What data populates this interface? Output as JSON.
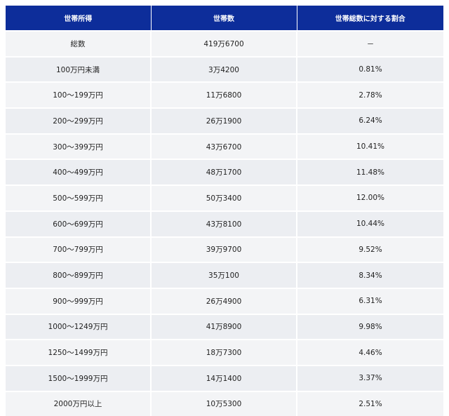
{
  "table": {
    "headers": [
      "世帯所得",
      "世帯数",
      "世帯総数に対する割合"
    ],
    "rows": [
      [
        "総数",
        "419万6700",
        "－"
      ],
      [
        "100万円未満",
        "3万4200",
        "0.81%"
      ],
      [
        "100～199万円",
        "11万6800",
        "2.78%"
      ],
      [
        "200～299万円",
        "26万1900",
        "6.24%"
      ],
      [
        "300～399万円",
        "43万6700",
        "10.41%"
      ],
      [
        "400～499万円",
        "48万1700",
        "11.48%"
      ],
      [
        "500～599万円",
        "50万3400",
        "12.00%"
      ],
      [
        "600～699万円",
        "43万8100",
        "10.44%"
      ],
      [
        "700～799万円",
        "39万9700",
        "9.52%"
      ],
      [
        "800～899万円",
        "35万100",
        "8.34%"
      ],
      [
        "900～999万円",
        "26万4900",
        "6.31%"
      ],
      [
        "1000～1249万円",
        "41万8900",
        "9.98%"
      ],
      [
        "1250～1499万円",
        "18万7300",
        "4.46%"
      ],
      [
        "1500～1999万円",
        "14万1400",
        "3.37%"
      ],
      [
        "2000万円以上",
        "10万5300",
        "2.51%"
      ]
    ]
  },
  "colors": {
    "header_bg": "#0d2d9a",
    "header_text": "#ffffff",
    "row_bg": "#f0f1f4"
  }
}
